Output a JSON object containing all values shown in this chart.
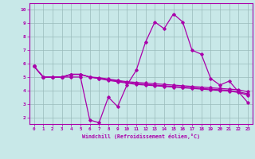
{
  "line1": {
    "x": [
      0,
      1,
      2,
      3,
      4,
      5,
      6,
      7,
      8,
      9,
      10,
      11,
      12,
      13,
      14,
      15,
      16,
      17,
      18,
      19,
      20,
      21,
      22,
      23
    ],
    "y": [
      5.8,
      5.0,
      5.0,
      5.0,
      5.0,
      5.0,
      1.8,
      1.6,
      3.5,
      2.8,
      4.4,
      5.5,
      7.6,
      9.1,
      8.6,
      9.7,
      9.1,
      7.0,
      6.7,
      4.9,
      4.4,
      4.7,
      3.9,
      3.1
    ]
  },
  "line2": {
    "x": [
      0,
      1,
      2,
      3,
      4,
      5,
      6,
      7,
      8,
      9,
      10,
      11,
      12,
      13,
      14,
      15,
      16,
      17,
      18,
      19,
      20,
      21,
      22,
      23
    ],
    "y": [
      5.8,
      5.0,
      5.0,
      5.0,
      5.2,
      5.2,
      5.0,
      4.95,
      4.85,
      4.75,
      4.65,
      4.6,
      4.55,
      4.5,
      4.45,
      4.4,
      4.35,
      4.3,
      4.25,
      4.2,
      4.15,
      4.1,
      4.05,
      3.9
    ]
  },
  "line3": {
    "x": [
      0,
      1,
      2,
      3,
      4,
      5,
      6,
      7,
      8,
      9,
      10,
      11,
      12,
      13,
      14,
      15,
      16,
      17,
      18,
      19,
      20,
      21,
      22,
      23
    ],
    "y": [
      5.8,
      5.0,
      5.0,
      5.0,
      5.2,
      5.2,
      5.0,
      4.9,
      4.8,
      4.7,
      4.6,
      4.5,
      4.45,
      4.4,
      4.35,
      4.3,
      4.25,
      4.2,
      4.15,
      4.1,
      4.05,
      4.0,
      3.9,
      3.75
    ]
  },
  "line4": {
    "x": [
      0,
      1,
      2,
      3,
      4,
      5,
      6,
      7,
      8,
      9,
      10,
      11,
      12,
      13,
      14,
      15,
      16,
      17,
      18,
      19,
      20,
      21,
      22,
      23
    ],
    "y": [
      5.8,
      5.0,
      5.0,
      5.0,
      5.2,
      5.2,
      5.0,
      4.88,
      4.75,
      4.65,
      4.55,
      4.45,
      4.4,
      4.35,
      4.3,
      4.25,
      4.2,
      4.15,
      4.1,
      4.05,
      4.0,
      3.95,
      3.85,
      3.65
    ]
  },
  "line_color": "#aa00aa",
  "bg_color": "#c8e8e8",
  "grid_color": "#99bbbb",
  "xlabel": "Windchill (Refroidissement éolien,°C)",
  "xlim": [
    -0.5,
    23.5
  ],
  "ylim": [
    1.5,
    10.5
  ],
  "xticks": [
    0,
    1,
    2,
    3,
    4,
    5,
    6,
    7,
    8,
    9,
    10,
    11,
    12,
    13,
    14,
    15,
    16,
    17,
    18,
    19,
    20,
    21,
    22,
    23
  ],
  "yticks": [
    2,
    3,
    4,
    5,
    6,
    7,
    8,
    9,
    10
  ]
}
